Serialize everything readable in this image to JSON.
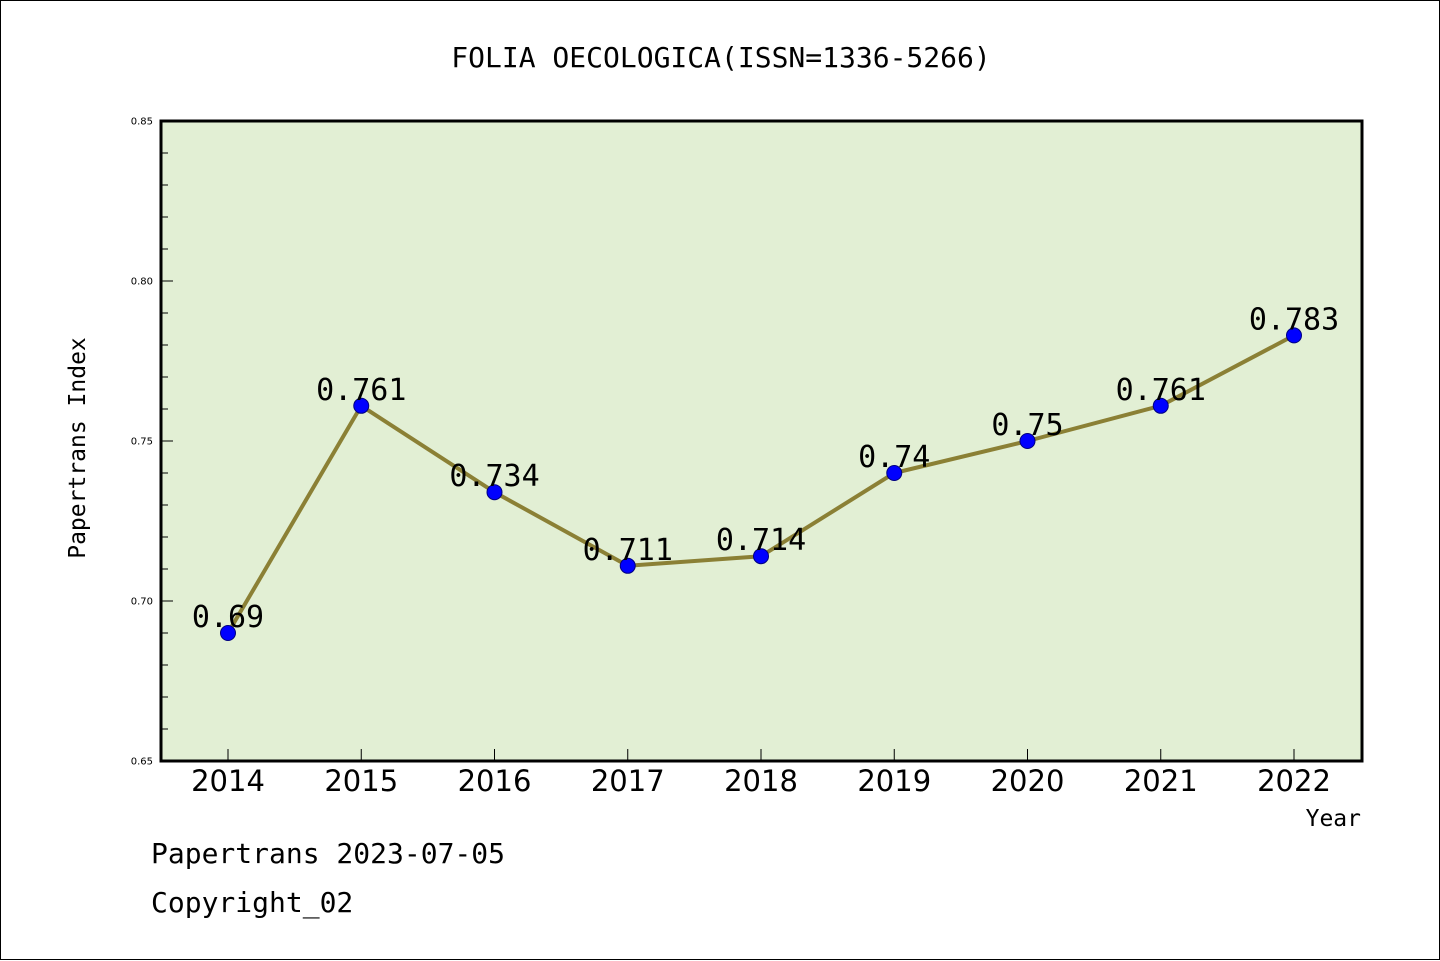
{
  "chart_data": {
    "type": "line",
    "title": "FOLIA OECOLOGICA(ISSN=1336-5266)",
    "xlabel": "Year",
    "ylabel": "Papertrans Index",
    "categories": [
      "2014",
      "2015",
      "2016",
      "2017",
      "2018",
      "2019",
      "2020",
      "2021",
      "2022"
    ],
    "values": [
      0.69,
      0.761,
      0.734,
      0.711,
      0.714,
      0.74,
      0.75,
      0.761,
      0.783
    ],
    "data_labels": [
      "0.69",
      "0.761",
      "0.734",
      "0.711",
      "0.714",
      "0.74",
      "0.75",
      "0.761",
      "0.783"
    ],
    "ylim": [
      0.65,
      0.85
    ],
    "yticks": [
      0.65,
      0.7,
      0.75,
      0.8,
      0.85
    ],
    "ytick_labels": [
      "0.65",
      "0.70",
      "0.75",
      "0.80",
      "0.85"
    ],
    "grid": false,
    "legend": "none",
    "colors": {
      "plot_background": "#e2efd4",
      "line": "#8b8035",
      "marker": "#0000ff",
      "marker_edge": "#000080",
      "frame": "#000000"
    }
  },
  "footer": {
    "date_text": "Papertrans 2023-07-05",
    "copyright_text": "Copyright_02"
  }
}
